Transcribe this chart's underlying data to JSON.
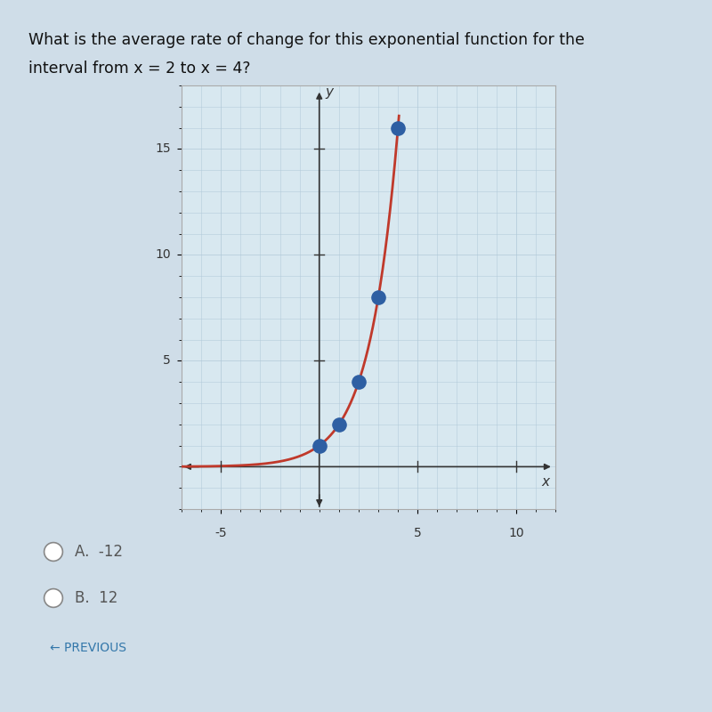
{
  "title_line1": "What is the average rate of change for this exponential function for the",
  "title_line2": "interval from x = 2 to x = 4?",
  "func_base": 2,
  "dot_points": [
    [
      0,
      1
    ],
    [
      1,
      2
    ],
    [
      2,
      4
    ],
    [
      3,
      8
    ],
    [
      4,
      16
    ]
  ],
  "curve_color": "#c0392b",
  "dot_color": "#2e5fa3",
  "dot_size": 120,
  "xlim": [
    -7,
    12
  ],
  "ylim": [
    -2,
    18
  ],
  "x_axis_min": -7,
  "x_axis_max": 12,
  "y_axis_min": -2,
  "y_axis_max": 18,
  "xtick_labels": [
    [
      -5,
      "-5"
    ],
    [
      5,
      "5"
    ],
    [
      10,
      "10"
    ]
  ],
  "ytick_labels": [
    [
      5,
      "5"
    ],
    [
      10,
      "10"
    ],
    [
      15,
      "15"
    ]
  ],
  "grid_color": "#b0c8d8",
  "grid_alpha": 0.7,
  "plot_bg_color": "#d8e8f0",
  "page_bg_color": "#cfdde8",
  "border_color": "#aaaaaa",
  "answer_options": [
    "A.  -12",
    "B.  12"
  ],
  "answer_color": "#555555",
  "previous_text": "← PREVIOUS",
  "previous_color": "#3377aa",
  "title_color": "#111111",
  "title_fontsize": 12.5,
  "option_fontsize": 12,
  "axis_label_color": "#333333"
}
